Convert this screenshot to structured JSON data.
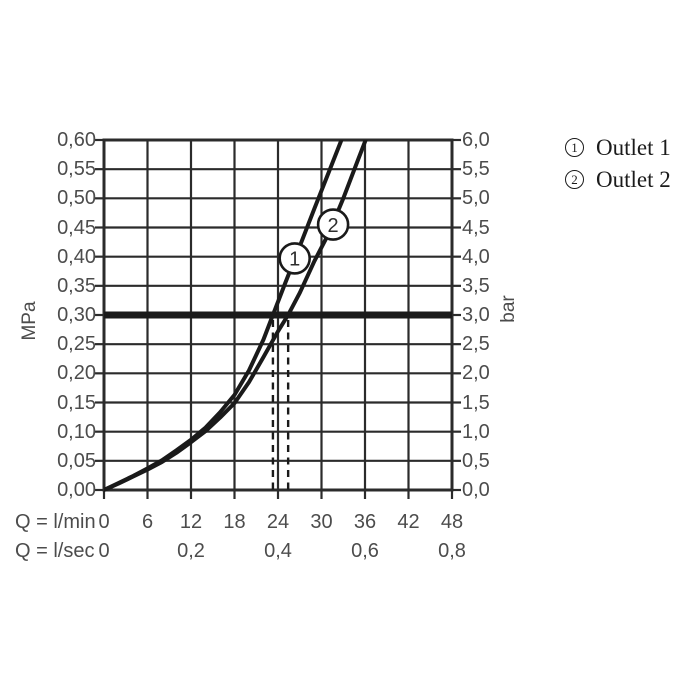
{
  "colors": {
    "background": "#ffffff",
    "ink": "#1a1a1a",
    "grid": "#2b2b2b",
    "text": "#4c4c4c",
    "legend_text": "#1b1b1b"
  },
  "legend": {
    "items": [
      {
        "symbol": "1",
        "label": "Outlet 1"
      },
      {
        "symbol": "2",
        "label": "Outlet 2"
      }
    ]
  },
  "chart_data": {
    "type": "line",
    "title": "",
    "grid": "on",
    "x_axis": {
      "row1_label": "Q = l/min",
      "row1_ticks": [
        "0",
        "6",
        "12",
        "18",
        "24",
        "30",
        "36",
        "42",
        "48"
      ],
      "row2_label": "Q = l/sec",
      "row2_ticks": [
        {
          "label": "0",
          "at_lmin": 0
        },
        {
          "label": "0,2",
          "at_lmin": 12
        },
        {
          "label": "0,4",
          "at_lmin": 24
        },
        {
          "label": "0,6",
          "at_lmin": 36
        },
        {
          "label": "0,8",
          "at_lmin": 48
        }
      ],
      "range_lmin": [
        0,
        48
      ],
      "step_lmin": 6
    },
    "y_axis_left": {
      "unit": "MPa",
      "ticks": [
        "0,00",
        "0,05",
        "0,10",
        "0,15",
        "0,20",
        "0,25",
        "0,30",
        "0,35",
        "0,40",
        "0,45",
        "0,50",
        "0,55",
        "0,60"
      ],
      "range": [
        0,
        0.6
      ],
      "step": 0.05
    },
    "y_axis_right": {
      "unit": "bar",
      "ticks": [
        "0,0",
        "0,5",
        "1,0",
        "1,5",
        "2,0",
        "2,5",
        "3,0",
        "3,5",
        "4,0",
        "4,5",
        "5,0",
        "5,5",
        "6,0"
      ],
      "range": [
        0,
        6
      ],
      "step": 0.5
    },
    "reference_line": {
      "mpa": 0.3,
      "bar": 3.0
    },
    "dashed_lines_lmin": [
      23.3,
      25.4
    ],
    "series": [
      {
        "name": "Outlet 1",
        "marker_symbol": "1",
        "marker_at": [
          26.3,
          0.397
        ],
        "points": [
          [
            0,
            0
          ],
          [
            2,
            0.012
          ],
          [
            4,
            0.024
          ],
          [
            6,
            0.037
          ],
          [
            8,
            0.051
          ],
          [
            10,
            0.068
          ],
          [
            12,
            0.086
          ],
          [
            14,
            0.107
          ],
          [
            16,
            0.133
          ],
          [
            18,
            0.163
          ],
          [
            20,
            0.205
          ],
          [
            22,
            0.258
          ],
          [
            23.3,
            0.3
          ],
          [
            25,
            0.355
          ],
          [
            27,
            0.418
          ],
          [
            29,
            0.482
          ],
          [
            31,
            0.545
          ],
          [
            33,
            0.608
          ],
          [
            33.6,
            0.63
          ]
        ]
      },
      {
        "name": "Outlet 2",
        "marker_symbol": "2",
        "marker_at": [
          31.6,
          0.455
        ],
        "points": [
          [
            0,
            0
          ],
          [
            2,
            0.011
          ],
          [
            4,
            0.023
          ],
          [
            6,
            0.035
          ],
          [
            8,
            0.048
          ],
          [
            10,
            0.064
          ],
          [
            12,
            0.082
          ],
          [
            14,
            0.101
          ],
          [
            16,
            0.124
          ],
          [
            18,
            0.149
          ],
          [
            20,
            0.185
          ],
          [
            22,
            0.228
          ],
          [
            24,
            0.272
          ],
          [
            25.4,
            0.3
          ],
          [
            27,
            0.338
          ],
          [
            29,
            0.392
          ],
          [
            31,
            0.44
          ],
          [
            33,
            0.5
          ],
          [
            35,
            0.565
          ],
          [
            36.4,
            0.61
          ],
          [
            36.9,
            0.63
          ]
        ]
      }
    ]
  }
}
